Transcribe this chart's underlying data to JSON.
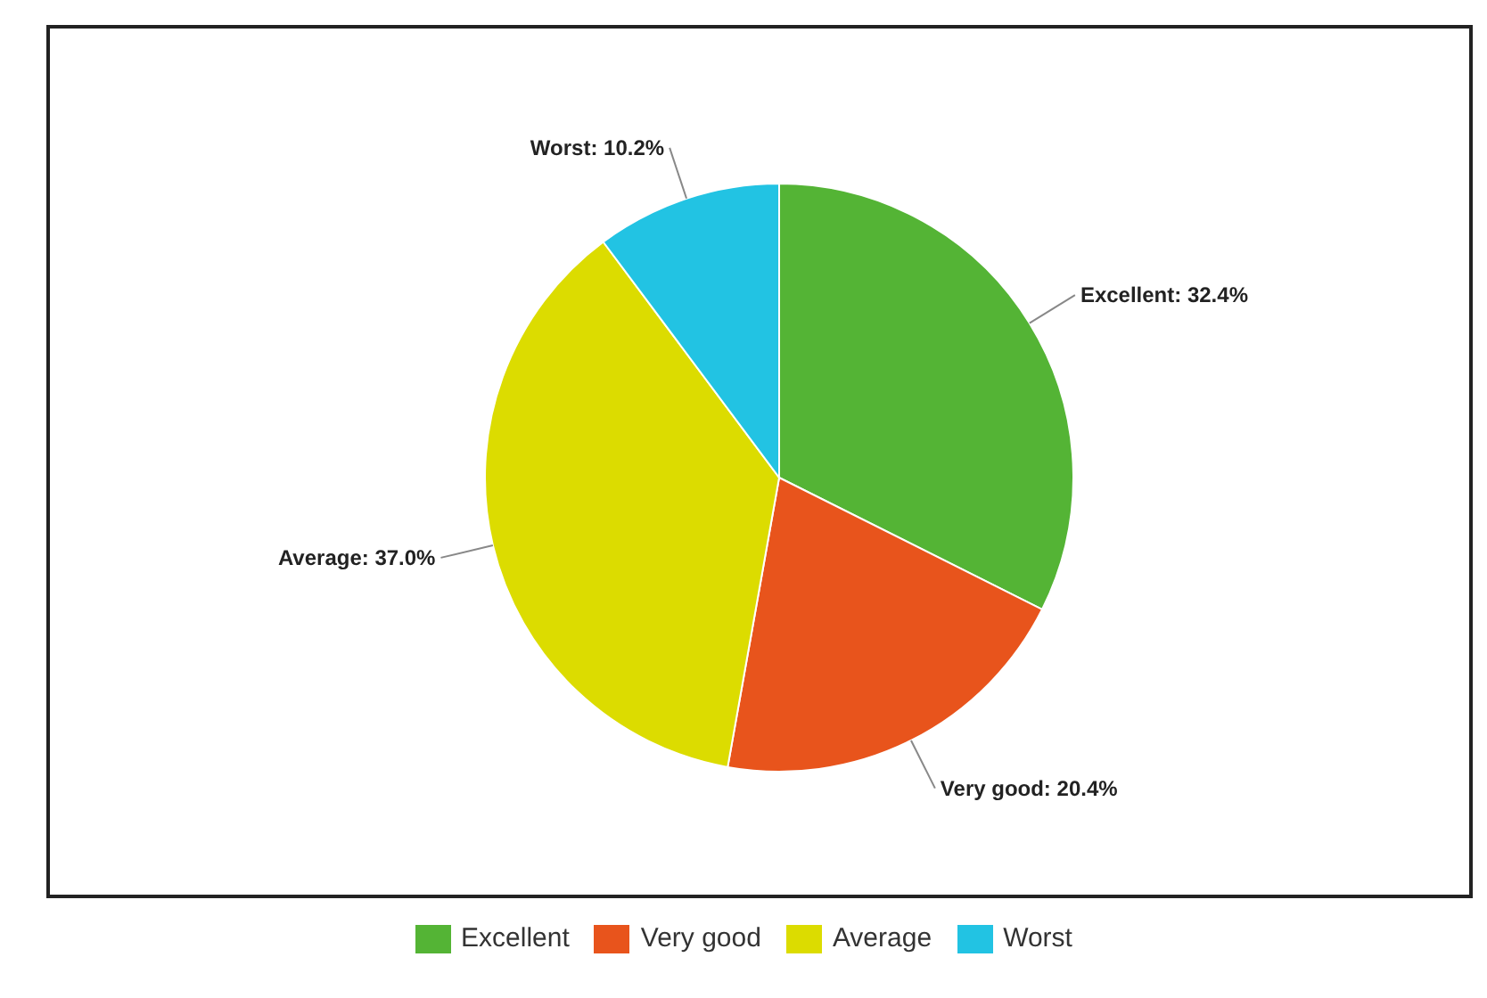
{
  "chart_data": {
    "type": "pie",
    "categories": [
      "Excellent",
      "Very good",
      "Average",
      "Worst"
    ],
    "values": [
      32.4,
      20.4,
      37.0,
      10.2
    ],
    "colors": [
      "#54b435",
      "#e8541c",
      "#dcdc00",
      "#22c3e3"
    ],
    "value_labels": [
      "Excellent: 32.4%",
      "Very good: 20.4%",
      "Average: 37.0%",
      "Worst: 10.2%"
    ],
    "legend": "bottom"
  }
}
